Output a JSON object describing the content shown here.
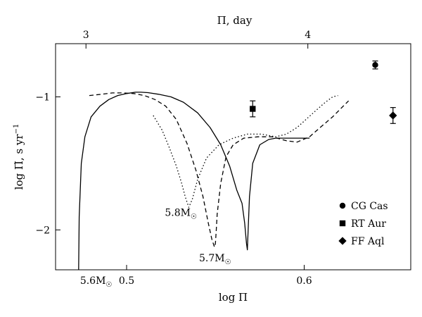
{
  "chart_data": {
    "type": "line",
    "xlabel": "log Π",
    "ylabel": "log Π̇,  s yr",
    "ylabel_exponent": "−1",
    "top_xlabel": "Π,  day",
    "xlim": [
      0.46,
      0.66
    ],
    "ylim": [
      -2.3,
      -0.6
    ],
    "x_ticks": [
      0.5,
      0.6
    ],
    "x_tick_labels": [
      "0.5",
      "0.6"
    ],
    "y_ticks": [
      -1,
      -2
    ],
    "y_tick_labels": [
      "−1",
      "−2"
    ],
    "top_ticks": [
      3,
      4
    ],
    "top_tick_labels": [
      "3",
      "4"
    ],
    "series": [
      {
        "name": "5.6M☉",
        "label_main": "5.6M",
        "label_sub": "☉",
        "style": "solid",
        "x": [
          0.473,
          0.4733,
          0.4745,
          0.4765,
          0.48,
          0.485,
          0.49,
          0.495,
          0.5,
          0.505,
          0.508,
          0.512,
          0.518,
          0.525,
          0.532,
          0.54,
          0.547,
          0.553,
          0.558,
          0.562,
          0.565,
          0.5665,
          0.5675,
          0.568,
          0.5686,
          0.5692,
          0.571,
          0.575,
          0.58,
          0.584,
          0.59,
          0.596,
          0.603
        ],
        "y": [
          -2.3,
          -1.9,
          -1.5,
          -1.3,
          -1.15,
          -1.07,
          -1.02,
          -0.99,
          -0.975,
          -0.965,
          -0.965,
          -0.968,
          -0.98,
          -1.0,
          -1.04,
          -1.12,
          -1.23,
          -1.36,
          -1.52,
          -1.7,
          -1.8,
          -1.95,
          -2.1,
          -2.15,
          -1.95,
          -1.75,
          -1.5,
          -1.36,
          -1.32,
          -1.31,
          -1.31,
          -1.31,
          -1.31
        ]
      },
      {
        "name": "5.7M☉",
        "label_main": "5.7M",
        "label_sub": "☉",
        "style": "dashed",
        "x": [
          0.479,
          0.486,
          0.492,
          0.498,
          0.504,
          0.51,
          0.516,
          0.522,
          0.528,
          0.534,
          0.539,
          0.543,
          0.546,
          0.548,
          0.549,
          0.5495,
          0.55,
          0.5505,
          0.551,
          0.553,
          0.556,
          0.56,
          0.566,
          0.574,
          0.582,
          0.59,
          0.596,
          0.603,
          0.609,
          0.616,
          0.622,
          0.625
        ],
        "y": [
          -0.99,
          -0.98,
          -0.97,
          -0.97,
          -0.975,
          -0.99,
          -1.02,
          -1.07,
          -1.17,
          -1.35,
          -1.55,
          -1.75,
          -1.95,
          -2.07,
          -2.11,
          -2.13,
          -2.1,
          -2.0,
          -1.88,
          -1.65,
          -1.45,
          -1.36,
          -1.31,
          -1.3,
          -1.3,
          -1.33,
          -1.34,
          -1.3,
          -1.23,
          -1.15,
          -1.07,
          -1.03
        ]
      },
      {
        "name": "5.8M☉",
        "label_main": "5.8M",
        "label_sub": "☉",
        "style": "dotted",
        "x": [
          0.515,
          0.52,
          0.524,
          0.528,
          0.531,
          0.533,
          0.535,
          0.537,
          0.54,
          0.545,
          0.552,
          0.56,
          0.568,
          0.576,
          0.584,
          0.59,
          0.596,
          0.601,
          0.606,
          0.611,
          0.616,
          0.619
        ],
        "y": [
          -1.14,
          -1.25,
          -1.38,
          -1.52,
          -1.65,
          -1.75,
          -1.83,
          -1.77,
          -1.62,
          -1.46,
          -1.36,
          -1.31,
          -1.28,
          -1.28,
          -1.3,
          -1.28,
          -1.23,
          -1.17,
          -1.11,
          -1.05,
          -1.0,
          -0.99
        ]
      }
    ],
    "points": [
      {
        "name": "CG Cas",
        "marker": "circle",
        "x": 0.64,
        "y": -0.76,
        "yerr": 0.03
      },
      {
        "name": "RT Aur",
        "marker": "square",
        "x": 0.571,
        "y": -1.09,
        "yerr": 0.06
      },
      {
        "name": "FF Aql",
        "marker": "diamond",
        "x": 0.65,
        "y": -1.14,
        "yerr": 0.06
      }
    ],
    "legend": {
      "placement": "bottom-right",
      "entries": [
        {
          "marker": "circle",
          "label": "CG Cas"
        },
        {
          "marker": "square",
          "label": "RT Aur"
        },
        {
          "marker": "diamond",
          "label": "FF Aql"
        }
      ]
    }
  }
}
